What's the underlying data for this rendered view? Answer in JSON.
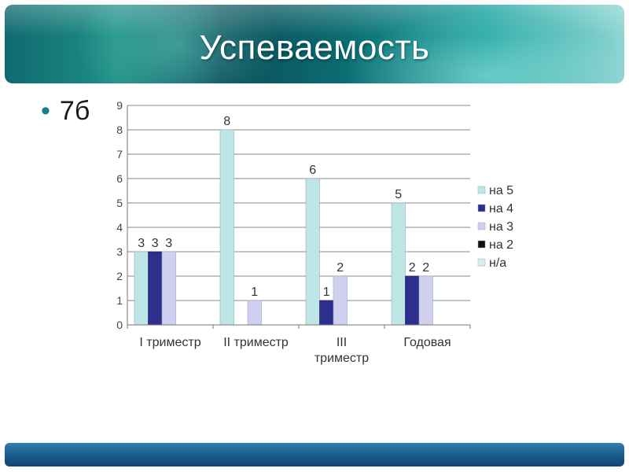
{
  "slide": {
    "title": "Успеваемость",
    "bullet": "7б"
  },
  "colors": {
    "header_accent": "#17808a",
    "series": [
      "#bfe6e6",
      "#2e2e8c",
      "#cfd0f0",
      "#111111",
      "#d6eef0"
    ]
  },
  "chart_data": {
    "type": "bar",
    "categories": [
      [
        "I триместр"
      ],
      [
        "II триместр"
      ],
      [
        "III",
        "триместр"
      ],
      [
        "Годовая"
      ]
    ],
    "series": [
      {
        "name": "на 5",
        "values": [
          3,
          8,
          6,
          5
        ]
      },
      {
        "name": "на 4",
        "values": [
          3,
          null,
          1,
          2
        ]
      },
      {
        "name": "на 3",
        "values": [
          3,
          1,
          2,
          2
        ]
      },
      {
        "name": "на 2",
        "values": [
          null,
          null,
          null,
          null
        ]
      },
      {
        "name": "н/а",
        "values": [
          null,
          null,
          null,
          null
        ]
      }
    ],
    "ylim": [
      0,
      9
    ],
    "yticks": [
      0,
      1,
      2,
      3,
      4,
      5,
      6,
      7,
      8,
      9
    ],
    "grid": true,
    "legend_position": "right"
  }
}
